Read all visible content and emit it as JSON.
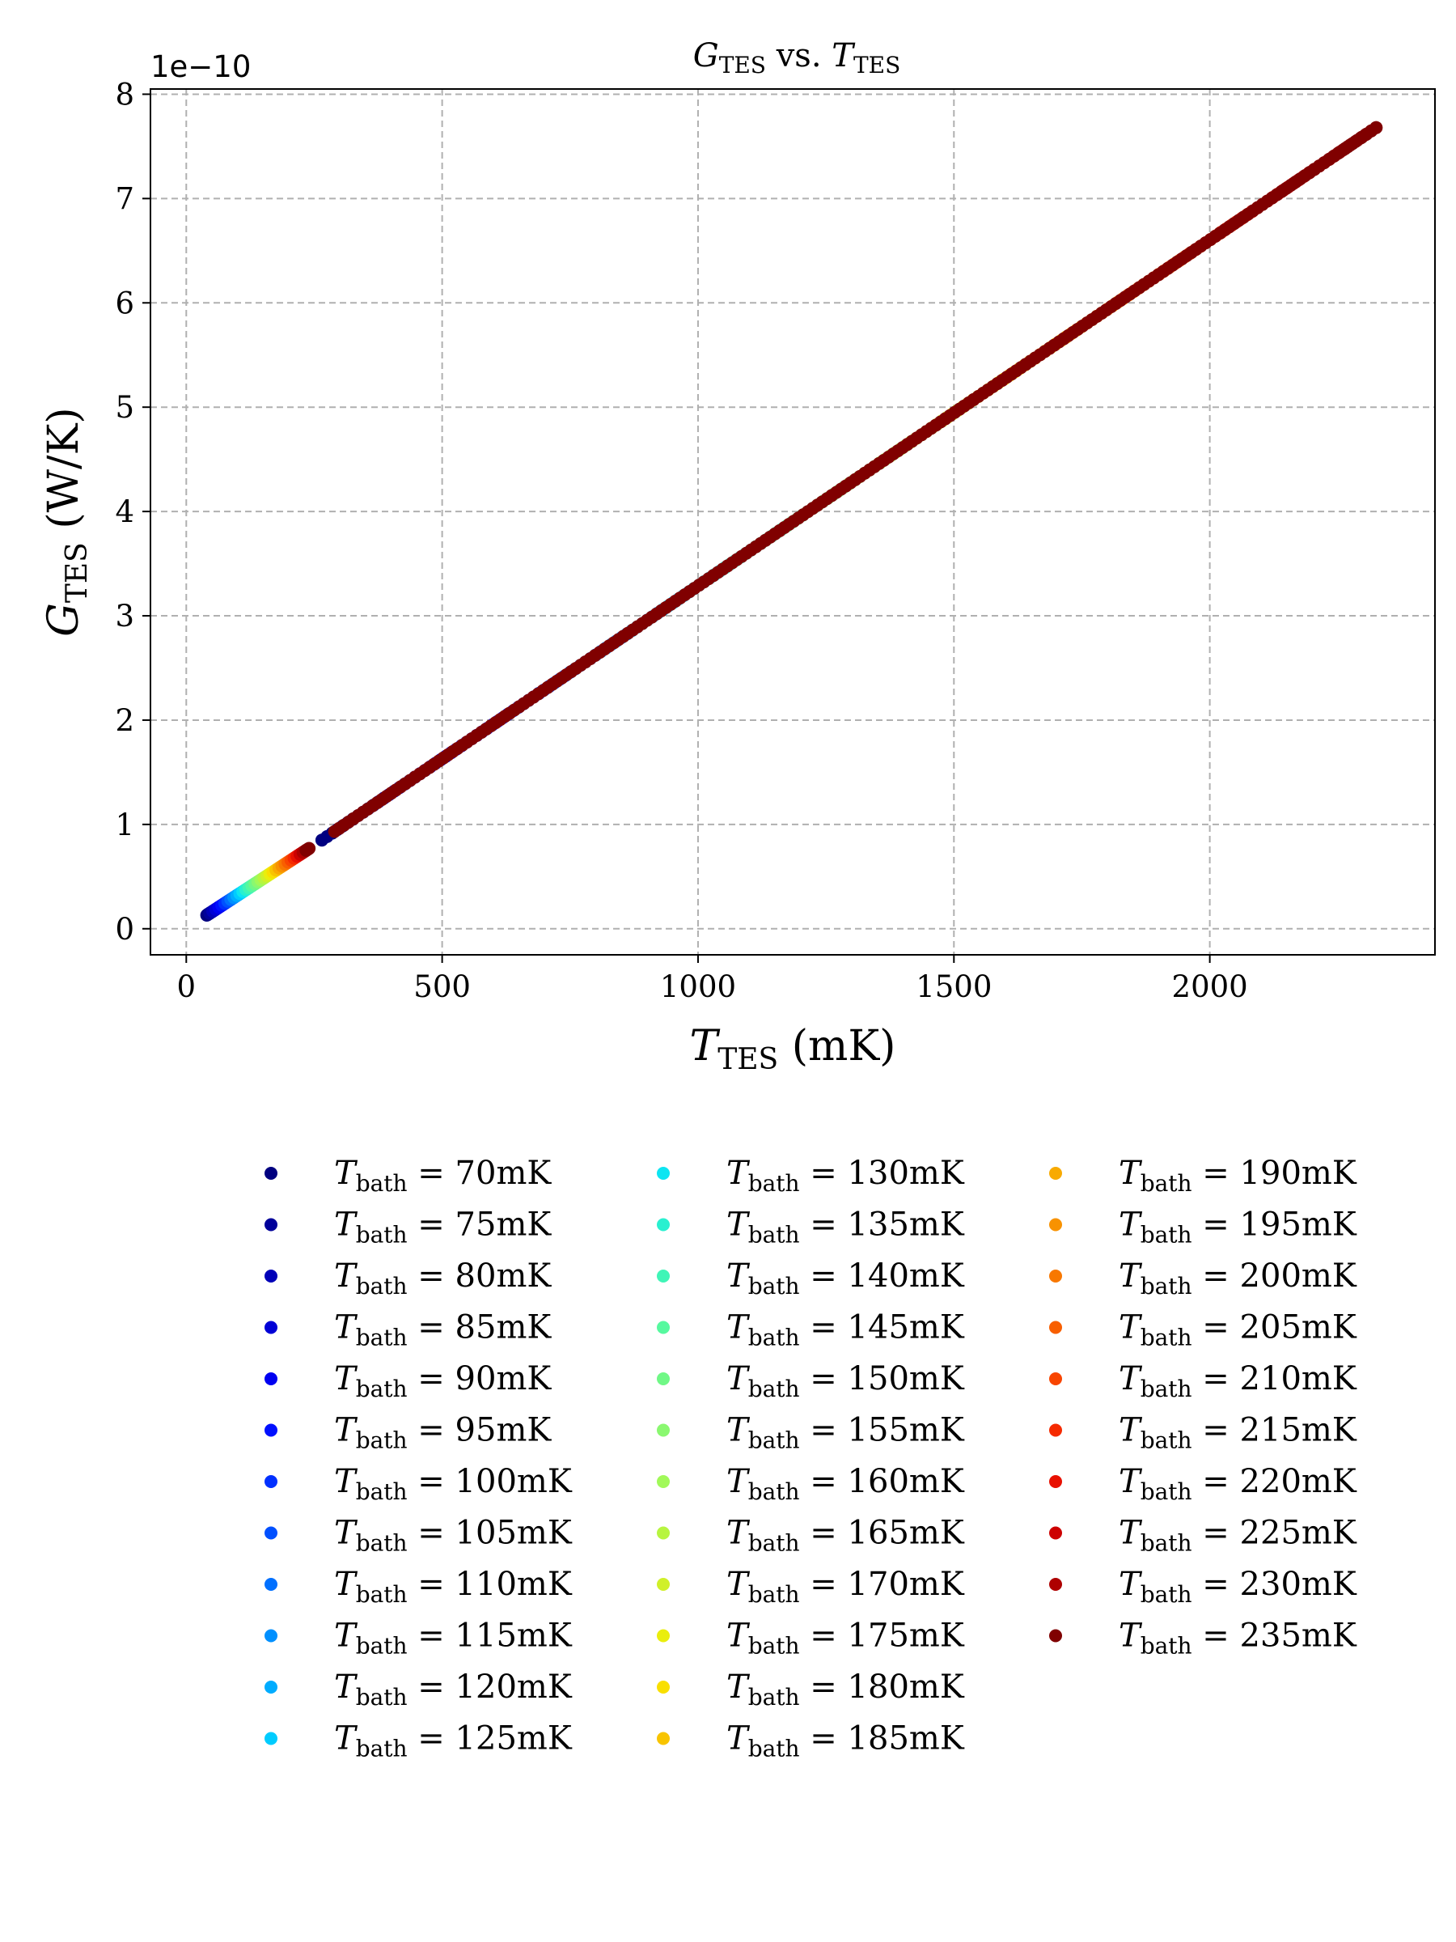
{
  "chart_data": {
    "type": "scatter",
    "title": {
      "main": "G",
      "main_sub": "TES",
      "mid": " vs. ",
      "right": "T",
      "right_sub": "TES"
    },
    "xlabel": {
      "sym": "T",
      "sub": "TES",
      "unit": " (mK)"
    },
    "ylabel": {
      "sym": "G",
      "sub": "TES",
      "unit": " (W/K)"
    },
    "y_offset_text": "1e−10",
    "x_ticks": [
      0,
      500,
      1000,
      1500,
      2000
    ],
    "y_ticks": [
      0,
      1,
      2,
      3,
      4,
      5,
      6,
      7,
      8
    ],
    "xlim": [
      -70,
      2440
    ],
    "ylim": [
      -0.25,
      8.05
    ],
    "grid": true,
    "legend_position": "below",
    "legend_columns": 3,
    "series": [
      {
        "name": "T_bath = 70mK",
        "t_bath": 70,
        "color": "#000080"
      },
      {
        "name": "T_bath = 75mK",
        "t_bath": 75,
        "color": "#00009a"
      },
      {
        "name": "T_bath = 80mK",
        "t_bath": 80,
        "color": "#0000b8"
      },
      {
        "name": "T_bath = 85mK",
        "t_bath": 85,
        "color": "#0000d6"
      },
      {
        "name": "T_bath = 90mK",
        "t_bath": 90,
        "color": "#0000f1"
      },
      {
        "name": "T_bath = 95mK",
        "t_bath": 95,
        "color": "#0010ff"
      },
      {
        "name": "T_bath = 100mK",
        "t_bath": 100,
        "color": "#0030ff"
      },
      {
        "name": "T_bath = 105mK",
        "t_bath": 105,
        "color": "#0050ff"
      },
      {
        "name": "T_bath = 110mK",
        "t_bath": 110,
        "color": "#0070ff"
      },
      {
        "name": "T_bath = 115mK",
        "t_bath": 115,
        "color": "#0090ff"
      },
      {
        "name": "T_bath = 120mK",
        "t_bath": 120,
        "color": "#00acff"
      },
      {
        "name": "T_bath = 125mK",
        "t_bath": 125,
        "color": "#00ccff"
      },
      {
        "name": "T_bath = 130mK",
        "t_bath": 130,
        "color": "#0de5f2"
      },
      {
        "name": "T_bath = 135mK",
        "t_bath": 135,
        "color": "#29f0d0"
      },
      {
        "name": "T_bath = 140mK",
        "t_bath": 140,
        "color": "#40f5b7"
      },
      {
        "name": "T_bath = 145mK",
        "t_bath": 145,
        "color": "#57f99f"
      },
      {
        "name": "T_bath = 150mK",
        "t_bath": 150,
        "color": "#70f886"
      },
      {
        "name": "T_bath = 155mK",
        "t_bath": 155,
        "color": "#8af870"
      },
      {
        "name": "T_bath = 160mK",
        "t_bath": 160,
        "color": "#a1f959"
      },
      {
        "name": "T_bath = 165mK",
        "t_bath": 165,
        "color": "#b7f540"
      },
      {
        "name": "T_bath = 170mK",
        "t_bath": 170,
        "color": "#d0f029"
      },
      {
        "name": "T_bath = 175mK",
        "t_bath": 175,
        "color": "#eaee0d"
      },
      {
        "name": "T_bath = 180mK",
        "t_bath": 180,
        "color": "#f9df00"
      },
      {
        "name": "T_bath = 185mK",
        "t_bath": 185,
        "color": "#f8c400"
      },
      {
        "name": "T_bath = 190mK",
        "t_bath": 190,
        "color": "#f8aa00"
      },
      {
        "name": "T_bath = 195mK",
        "t_bath": 195,
        "color": "#f89200"
      },
      {
        "name": "T_bath = 200mK",
        "t_bath": 200,
        "color": "#f87800"
      },
      {
        "name": "T_bath = 205mK",
        "t_bath": 205,
        "color": "#f85f00"
      },
      {
        "name": "T_bath = 210mK",
        "t_bath": 210,
        "color": "#f84500"
      },
      {
        "name": "T_bath = 215mK",
        "t_bath": 215,
        "color": "#f52a00"
      },
      {
        "name": "T_bath = 220mK",
        "t_bath": 220,
        "color": "#e81000"
      },
      {
        "name": "T_bath = 225mK",
        "t_bath": 225,
        "color": "#cd0000"
      },
      {
        "name": "T_bath = 230mK",
        "t_bath": 230,
        "color": "#ae0000"
      },
      {
        "name": "T_bath = 235mK",
        "t_bath": 235,
        "color": "#800000"
      }
    ],
    "data_trend": {
      "description": "G_TES (units of 1e-10 W/K) rises linearly with T_TES (mK)",
      "low_segment": {
        "x": [
          40,
          240
        ],
        "y": [
          0.13,
          0.77
        ]
      },
      "high_segment": {
        "x": [
          265,
          2325
        ],
        "y": [
          0.85,
          7.68
        ]
      }
    }
  }
}
